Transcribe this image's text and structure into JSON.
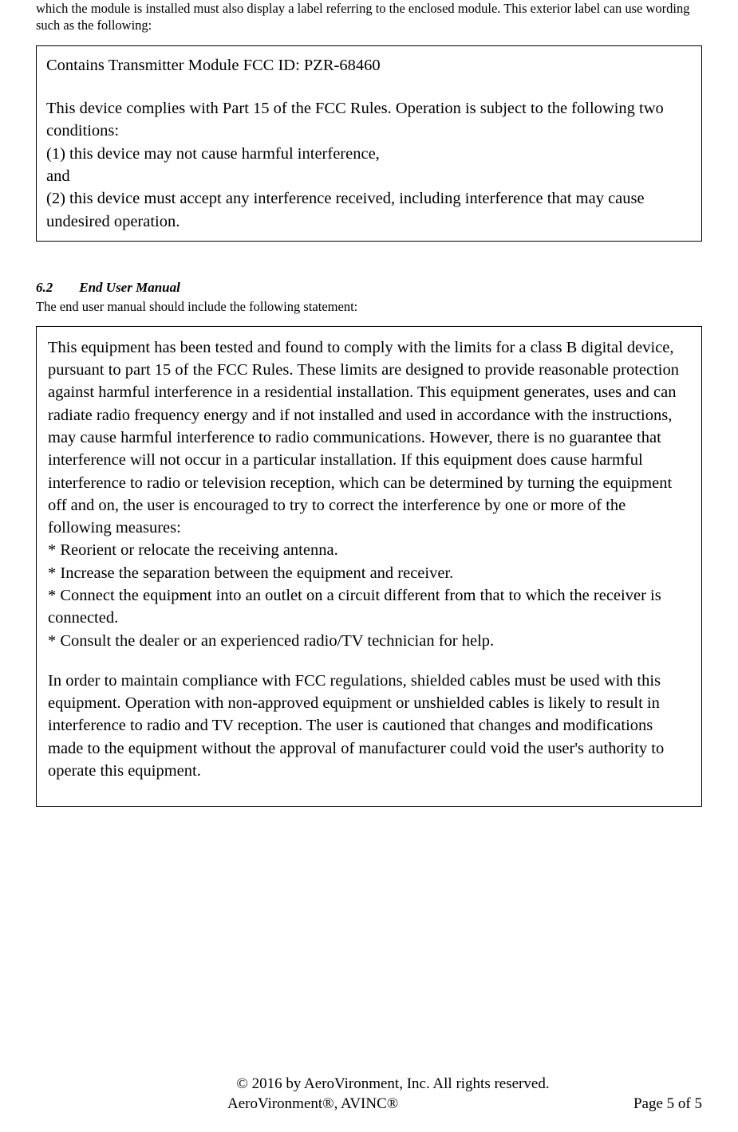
{
  "intro": "which the module is installed must also display a label referring to the enclosed module. This exterior label can use wording such as the following:",
  "box1": {
    "line1": "Contains Transmitter Module FCC ID: PZR-68460",
    "para1": "This device complies with Part 15 of the FCC Rules. Operation is subject to the following two conditions:",
    "cond1": "(1) this device may not cause harmful interference,",
    "and": "and",
    "cond2": "(2) this device must accept any interference received, including interference that may cause undesired operation."
  },
  "section": {
    "number": "6.2",
    "title": "End User Manual",
    "intro": "The end user manual should include the following statement:"
  },
  "box2": {
    "para1": "This equipment has been tested and found to comply with the limits for a class B digital device, pursuant to part 15 of the FCC Rules. These limits are designed to provide reasonable protection against harmful interference in a residential installation. This equipment generates, uses and can radiate radio frequency energy and if not installed and used in accordance with the instructions, may cause harmful interference to radio communications. However, there is no guarantee that interference will not occur in a particular installation. If this equipment does cause harmful interference to radio or television reception, which can be determined by turning the equipment off and on, the user is encouraged to try to correct the interference by one or more of the following measures:",
    "bullet1": "* Reorient or relocate the receiving antenna.",
    "bullet2": "* Increase the separation between the equipment and receiver.",
    "bullet3": "* Connect the equipment into an outlet on a circuit different from that to which the receiver is connected.",
    "bullet4": "* Consult the dealer or an experienced radio/TV technician for help.",
    "para2": "In order to maintain compliance with FCC regulations, shielded cables must be used with this equipment. Operation with non-approved equipment or unshielded cables is likely to result in interference to radio and TV reception. The user is cautioned that changes and modifications made to the equipment without the approval of manufacturer could void the user's authority to operate this equipment."
  },
  "footer": {
    "copyright": "© 2016 by AeroVironment, Inc. All rights reserved.",
    "trademark": "AeroVironment®, AVINC®",
    "page": "Page 5 of 5"
  }
}
